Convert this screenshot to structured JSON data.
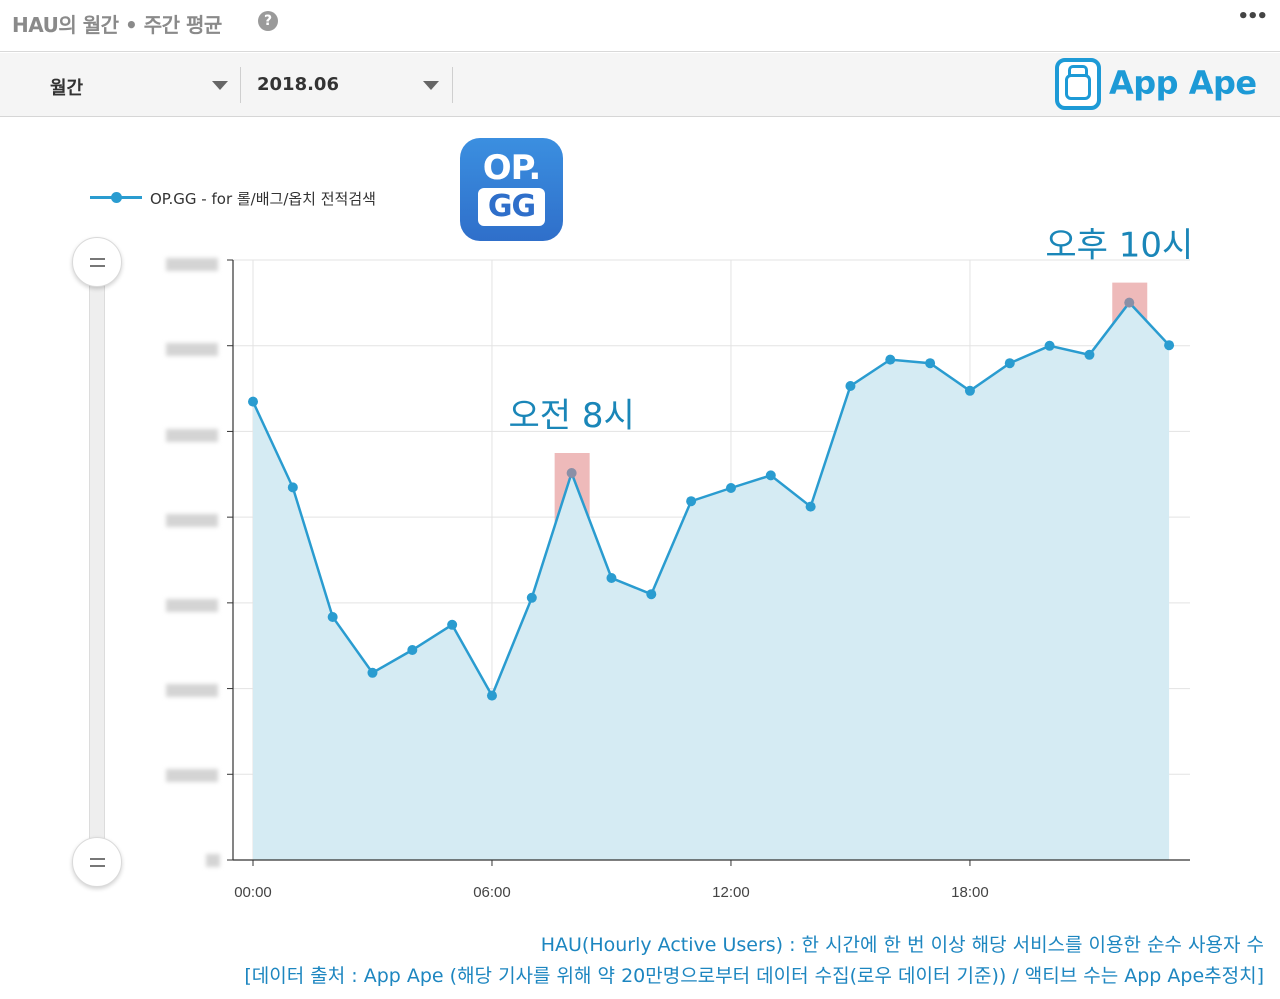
{
  "header": {
    "title": "HAU의 월간 • 주간 평균",
    "help_icon": "?",
    "more_icon": "•••"
  },
  "filters": {
    "period_label": "월간",
    "month_label": "2018.06"
  },
  "brand": {
    "name": "App Ape",
    "color": "#1d9ad6"
  },
  "app_icon": {
    "line1": "OP.",
    "line2": "GG"
  },
  "chart_data": {
    "type": "area",
    "series": [
      {
        "name": "OP.GG - for 롤/배그/옵치 전적검색",
        "color": "#2a9cd0",
        "fill": "#d5ebf3",
        "values": [
          0.764,
          0.621,
          0.405,
          0.312,
          0.35,
          0.392,
          0.274,
          0.437,
          0.645,
          0.47,
          0.443,
          0.598,
          0.62,
          0.641,
          0.589,
          0.79,
          0.834,
          0.828,
          0.782,
          0.828,
          0.857,
          0.842,
          0.929,
          0.858
        ]
      }
    ],
    "x": [
      0,
      1,
      2,
      3,
      4,
      5,
      6,
      7,
      8,
      9,
      10,
      11,
      12,
      13,
      14,
      15,
      16,
      17,
      18,
      19,
      20,
      21,
      22,
      23
    ],
    "x_tick_labels": [
      "00:00",
      "06:00",
      "12:00",
      "18:00"
    ],
    "y_tick_labels_hidden": true,
    "ylim": [
      0,
      1
    ],
    "grid": true,
    "legend_position": "top-left",
    "highlights": [
      {
        "x": 8,
        "label": "오전 8시",
        "color": "#e8a3a3"
      },
      {
        "x": 22,
        "label": "오후 10시",
        "color": "#e8a3a3"
      }
    ]
  },
  "footnotes": {
    "line1": "HAU(Hourly Active Users) : 한 시간에 한 번 이상 해당 서비스를 이용한 순수 사용자 수",
    "line2": "[데이터 출처 : App Ape (해당 기사를 위해 약 20만명으로부터 데이터 수집(로우 데이터 기준)) / 액티브 수는 App Ape추정치]"
  }
}
